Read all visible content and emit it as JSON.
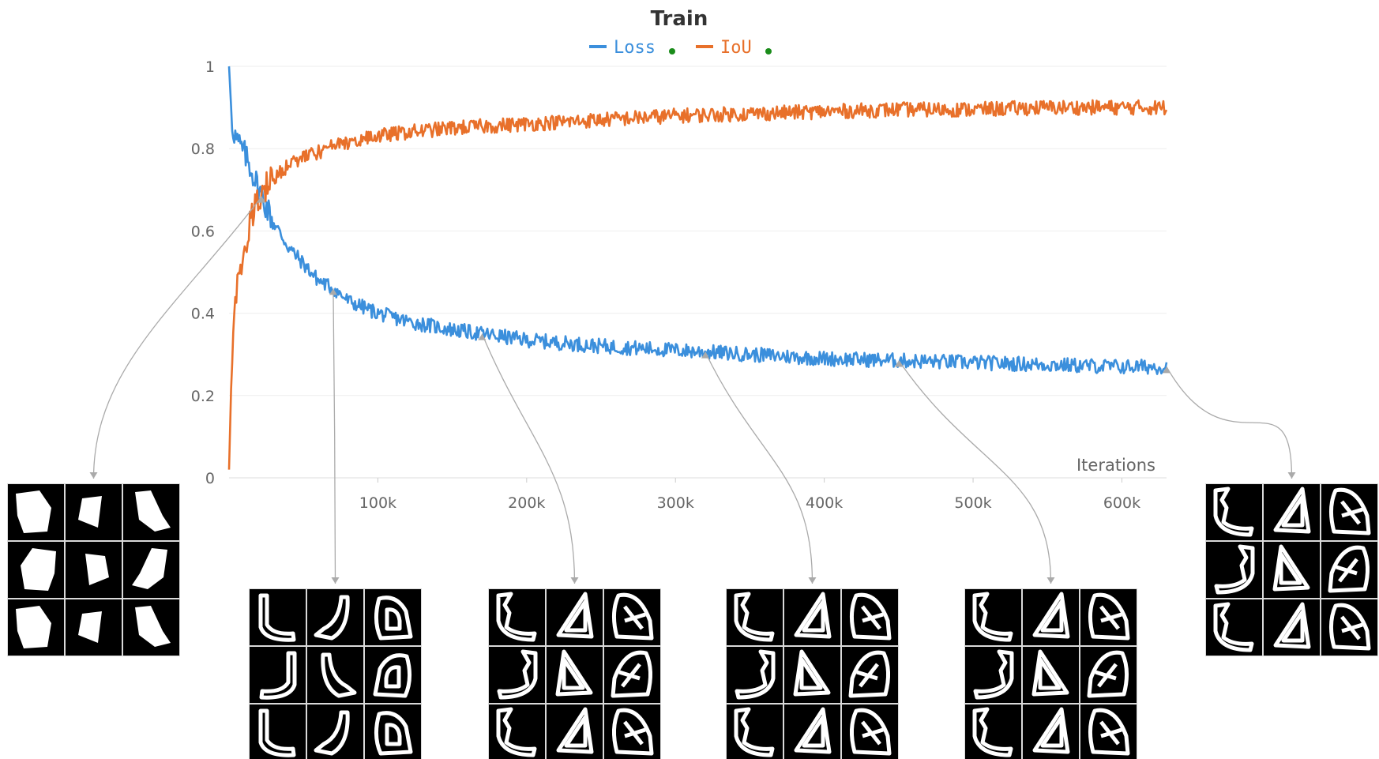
{
  "chart_data": {
    "type": "line",
    "title": "Train",
    "xlabel": "Iterations",
    "ylabel": "",
    "xlim": [
      0,
      630000
    ],
    "ylim": [
      0,
      1
    ],
    "x_ticks": [
      "100k",
      "200k",
      "300k",
      "400k",
      "500k",
      "600k"
    ],
    "y_ticks": [
      "0",
      "0.2",
      "0.4",
      "0.6",
      "0.8",
      "1"
    ],
    "grid": true,
    "legend_position": "top-center",
    "series": [
      {
        "name": "Loss",
        "color": "#3b8fdc",
        "x": [
          0,
          2000,
          5000,
          10000,
          15000,
          20000,
          25000,
          30000,
          40000,
          50000,
          60000,
          70000,
          80000,
          100000,
          120000,
          150000,
          200000,
          250000,
          300000,
          350000,
          400000,
          450000,
          500000,
          550000,
          600000,
          630000
        ],
        "y": [
          1.0,
          0.86,
          0.82,
          0.79,
          0.75,
          0.7,
          0.66,
          0.62,
          0.56,
          0.52,
          0.48,
          0.46,
          0.43,
          0.4,
          0.38,
          0.36,
          0.335,
          0.32,
          0.31,
          0.3,
          0.29,
          0.285,
          0.28,
          0.275,
          0.27,
          0.27
        ]
      },
      {
        "name": "IoU",
        "color": "#e8702a",
        "x": [
          0,
          2000,
          5000,
          10000,
          15000,
          20000,
          25000,
          30000,
          40000,
          50000,
          60000,
          70000,
          80000,
          100000,
          120000,
          150000,
          200000,
          250000,
          300000,
          350000,
          400000,
          450000,
          500000,
          550000,
          600000,
          630000
        ],
        "y": [
          0.02,
          0.3,
          0.46,
          0.55,
          0.63,
          0.68,
          0.71,
          0.73,
          0.76,
          0.78,
          0.79,
          0.805,
          0.815,
          0.83,
          0.84,
          0.85,
          0.86,
          0.87,
          0.88,
          0.885,
          0.89,
          0.895,
          0.895,
          0.9,
          0.9,
          0.9
        ]
      }
    ],
    "annotations": [
      {
        "x": 22000,
        "series": "Loss",
        "thumbnail": "grid-3x3-early-noisy-blobs"
      },
      {
        "x": 70000,
        "series": "Loss",
        "thumbnail": "grid-3x3-thick-outlines"
      },
      {
        "x": 170000,
        "series": "Loss",
        "thumbnail": "grid-3x3-shapes-with-lines"
      },
      {
        "x": 320000,
        "series": "Loss",
        "thumbnail": "grid-3x3-refined-structures"
      },
      {
        "x": 450000,
        "series": "Loss",
        "thumbnail": "grid-3x3-refined-structures"
      },
      {
        "x": 630000,
        "series": "Loss",
        "thumbnail": "grid-3x3-final-structures"
      }
    ]
  }
}
